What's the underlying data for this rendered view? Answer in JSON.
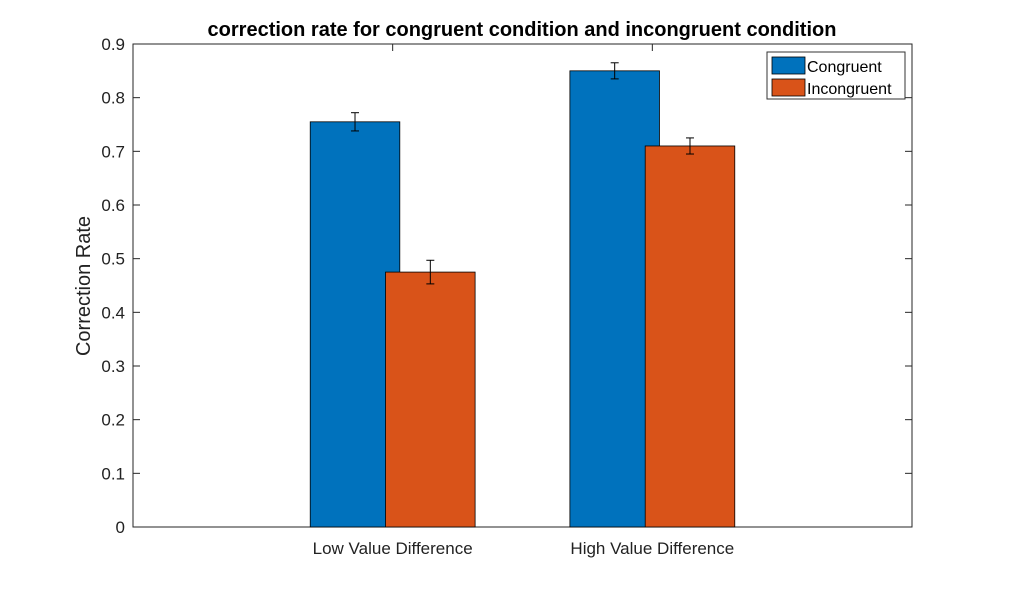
{
  "chart_data": {
    "type": "bar",
    "title": "correction rate for congruent condition and incongruent condition",
    "xlabel": "",
    "ylabel": "Correction Rate",
    "categories": [
      "Low Value Difference",
      "High Value Difference"
    ],
    "series": [
      {
        "name": "Congruent",
        "color": "#0072BD",
        "values": [
          0.755,
          0.85
        ],
        "errors": [
          0.017,
          0.015
        ]
      },
      {
        "name": "Incongruent",
        "color": "#D95319",
        "values": [
          0.475,
          0.71
        ],
        "errors": [
          0.022,
          0.015
        ]
      }
    ],
    "ylim": [
      0,
      0.9
    ],
    "yticks": [
      0,
      0.1,
      0.2,
      0.3,
      0.4,
      0.5,
      0.6,
      0.7,
      0.8,
      0.9
    ],
    "ytick_labels": [
      "0",
      "0.1",
      "0.2",
      "0.3",
      "0.4",
      "0.5",
      "0.6",
      "0.7",
      "0.8",
      "0.9"
    ],
    "grid": false,
    "legend": "top-right"
  }
}
